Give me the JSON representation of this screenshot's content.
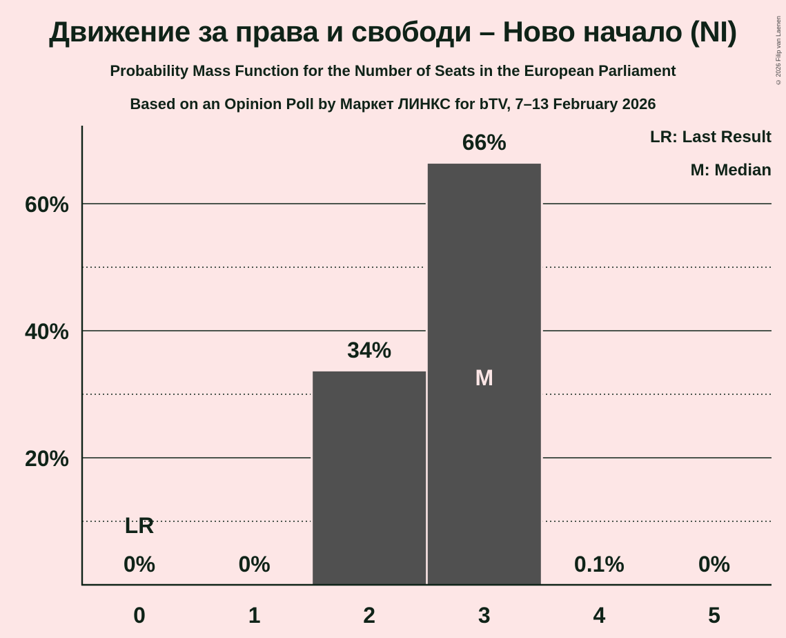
{
  "header": {
    "title": "Движение за права и свободи – Ново начало (NI)",
    "subtitle1": "Probability Mass Function for the Number of Seats in the European Parliament",
    "subtitle2": "Based on an Opinion Poll by Маркет ЛИНКС for bTV, 7–13 February 2026",
    "copyright": "© 2026 Filip van Laenen"
  },
  "legend": {
    "last_result": "LR: Last Result",
    "median": "M: Median"
  },
  "colors": {
    "background": "#fde6e6",
    "bar": "#505050",
    "text": "#0f2318",
    "median_marker_text": "#fde6e6"
  },
  "chart_data": {
    "type": "bar",
    "title": "Движение за права и свободи – Ново начало (NI)",
    "subtitle": "Probability Mass Function for the Number of Seats in the European Parliament",
    "xlabel": "",
    "ylabel": "",
    "categories": [
      "0",
      "1",
      "2",
      "3",
      "4",
      "5"
    ],
    "values": [
      0,
      0,
      33.6,
      66.3,
      0.1,
      0
    ],
    "data_labels": [
      "0%",
      "0%",
      "34%",
      "66%",
      "0.1%",
      "0%"
    ],
    "ylim": [
      0,
      72
    ],
    "y_ticks": [
      {
        "value": 20,
        "label": "20%"
      },
      {
        "value": 40,
        "label": "40%"
      },
      {
        "value": 60,
        "label": "60%"
      }
    ],
    "major_gridlines": [
      20,
      40,
      60
    ],
    "minor_gridlines_dotted": [
      10,
      30,
      50
    ],
    "annotations": [
      {
        "category": "0",
        "text": "LR",
        "meaning": "Last Result"
      },
      {
        "category": "3",
        "text": "M",
        "meaning": "Median"
      }
    ],
    "legend": [
      "LR: Last Result",
      "M: Median"
    ],
    "legend_position": "top-right",
    "grid": true
  }
}
